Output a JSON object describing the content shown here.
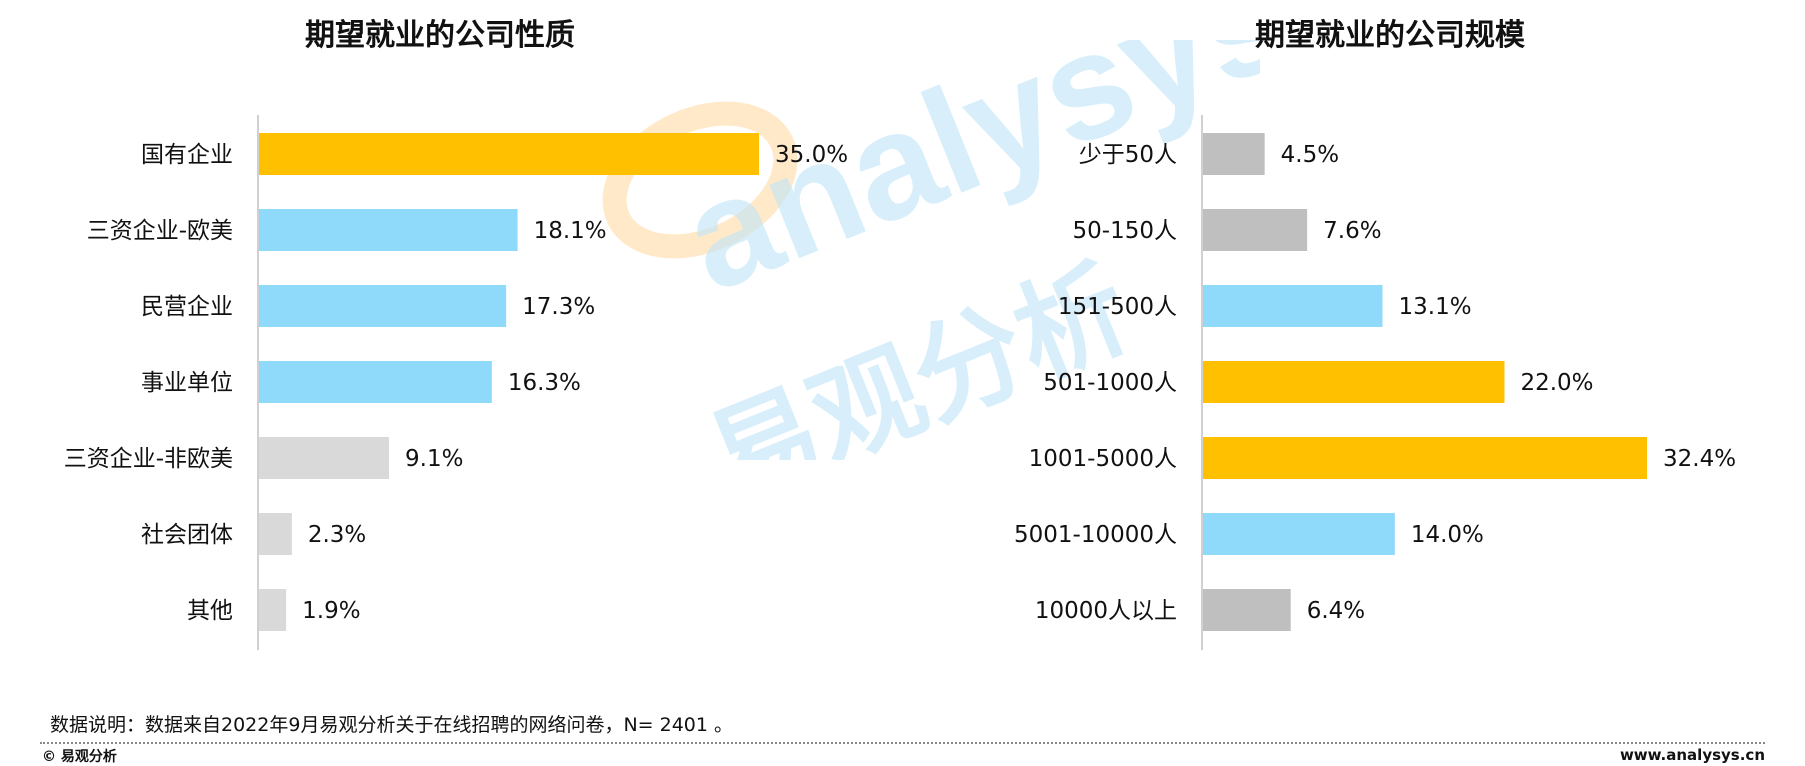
{
  "chart_data": [
    {
      "type": "bar",
      "orientation": "horizontal",
      "title": "期望就业的公司性质",
      "categories": [
        "国有企业",
        "三资企业-欧美",
        "民营企业",
        "事业单位",
        "三资企业-非欧美",
        "社会团体",
        "其他"
      ],
      "values": [
        35.0,
        18.1,
        17.3,
        16.3,
        9.1,
        2.3,
        1.9
      ],
      "value_labels": [
        "35.0%",
        "18.1%",
        "17.3%",
        "16.3%",
        "9.1%",
        "2.3%",
        "1.9%"
      ],
      "bar_colors": [
        "#FFC000",
        "#8FDAFB",
        "#8FDAFB",
        "#8FDAFB",
        "#D9D9D9",
        "#D9D9D9",
        "#D9D9D9"
      ],
      "xlim": [
        0,
        35
      ]
    },
    {
      "type": "bar",
      "orientation": "horizontal",
      "title": "期望就业的公司规模",
      "categories": [
        "少于50人",
        "50-150人",
        "151-500人",
        "501-1000人",
        "1001-5000人",
        "5001-10000人",
        "10000人以上"
      ],
      "values": [
        4.5,
        7.6,
        13.1,
        22.0,
        32.4,
        14.0,
        6.4
      ],
      "value_labels": [
        "4.5%",
        "7.6%",
        "13.1%",
        "22.0%",
        "32.4%",
        "14.0%",
        "6.4%"
      ],
      "bar_colors": [
        "#BFBFBF",
        "#BFBFBF",
        "#8FDAFB",
        "#FFC000",
        "#FFC000",
        "#8FDAFB",
        "#BFBFBF"
      ],
      "xlim": [
        0,
        32.4
      ]
    }
  ],
  "watermark": {
    "latin": "analysys",
    "cn": "易观分析"
  },
  "note": "数据说明：数据来自2022年9月易观分析关于在线招聘的网络问卷，N= 2401 。",
  "footer": {
    "brand": "© 易观分析",
    "url": "www.analysys.cn"
  }
}
